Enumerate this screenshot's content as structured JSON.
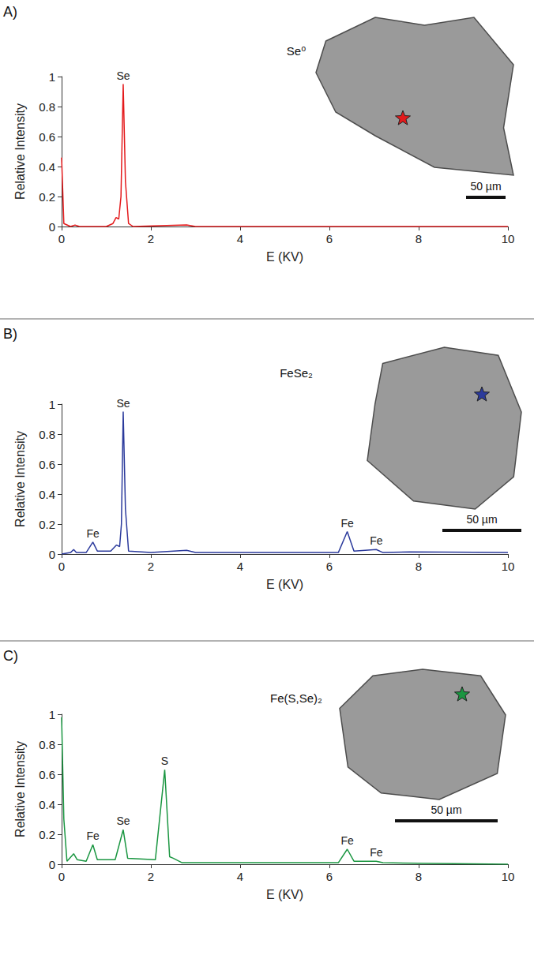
{
  "chart_data": [
    {
      "type": "line",
      "panel": "A)",
      "title": "Se⁰",
      "color": "#e41a1c",
      "x_label": "E (KV)",
      "y_label": "Relative Intensity",
      "xlim": [
        0,
        10
      ],
      "xticks": [
        0,
        2,
        4,
        6,
        8,
        10
      ],
      "ylim": [
        0,
        1
      ],
      "yticks": [
        0,
        0.2,
        0.4,
        0.6,
        0.8,
        1
      ],
      "grid": false,
      "x": [
        0,
        0.05,
        0.2,
        0.3,
        0.4,
        1.0,
        1.15,
        1.22,
        1.28,
        1.33,
        1.38,
        1.43,
        1.5,
        1.6,
        2.8,
        3.0,
        10
      ],
      "values": [
        0.46,
        0.02,
        0.0,
        0.01,
        0.0,
        0.0,
        0.02,
        0.06,
        0.05,
        0.2,
        0.95,
        0.3,
        0.02,
        0.0,
        0.01,
        0.0,
        0.0
      ],
      "annotations": [
        {
          "text": "Se",
          "x": 1.38,
          "y": 0.95
        }
      ],
      "scale_bar": "50 µm"
    },
    {
      "type": "line",
      "panel": "B)",
      "title": "FeSe₂",
      "color": "#2b3a9c",
      "x_label": "E (KV)",
      "y_label": "Relative Intensity",
      "xlim": [
        0,
        10
      ],
      "xticks": [
        0,
        2,
        4,
        6,
        8,
        10
      ],
      "ylim": [
        0,
        1
      ],
      "yticks": [
        0,
        0.2,
        0.4,
        0.6,
        0.8,
        1
      ],
      "grid": false,
      "x": [
        0,
        0.2,
        0.27,
        0.33,
        0.55,
        0.7,
        0.8,
        1.1,
        1.23,
        1.3,
        1.34,
        1.38,
        1.43,
        1.5,
        2.0,
        2.8,
        3.0,
        6.2,
        6.4,
        6.55,
        7.05,
        7.2,
        7.8,
        10
      ],
      "values": [
        0.0,
        0.01,
        0.03,
        0.01,
        0.01,
        0.08,
        0.02,
        0.02,
        0.06,
        0.05,
        0.2,
        0.95,
        0.3,
        0.02,
        0.01,
        0.025,
        0.01,
        0.01,
        0.15,
        0.02,
        0.03,
        0.01,
        0.015,
        0.01
      ],
      "annotations": [
        {
          "text": "Fe",
          "x": 0.7,
          "y": 0.08
        },
        {
          "text": "Se",
          "x": 1.38,
          "y": 0.95
        },
        {
          "text": "Fe",
          "x": 6.4,
          "y": 0.15
        },
        {
          "text": "Fe",
          "x": 7.05,
          "y": 0.03
        }
      ],
      "scale_bar": "50 µm"
    },
    {
      "type": "line",
      "panel": "C)",
      "title": "Fe(S,Se)₂",
      "color": "#1a9641",
      "x_label": "E (KV)",
      "y_label": "Relative Intensity",
      "xlim": [
        0,
        10
      ],
      "xticks": [
        0,
        2,
        4,
        6,
        8,
        10
      ],
      "ylim": [
        0,
        1
      ],
      "yticks": [
        0,
        0.2,
        0.4,
        0.6,
        0.8,
        1
      ],
      "grid": false,
      "x": [
        0,
        0.05,
        0.12,
        0.27,
        0.35,
        0.55,
        0.7,
        0.8,
        1.2,
        1.38,
        1.48,
        2.1,
        2.31,
        2.42,
        2.5,
        2.7,
        6.2,
        6.4,
        6.55,
        7.05,
        7.2,
        10
      ],
      "values": [
        0.98,
        0.3,
        0.02,
        0.07,
        0.03,
        0.02,
        0.13,
        0.03,
        0.03,
        0.23,
        0.04,
        0.03,
        0.63,
        0.05,
        0.04,
        0.01,
        0.01,
        0.1,
        0.02,
        0.02,
        0.01,
        0.0
      ],
      "annotations": [
        {
          "text": "Fe",
          "x": 0.7,
          "y": 0.13
        },
        {
          "text": "Se",
          "x": 1.38,
          "y": 0.23
        },
        {
          "text": "S",
          "x": 2.31,
          "y": 0.63
        },
        {
          "text": "Fe",
          "x": 6.4,
          "y": 0.1
        },
        {
          "text": "Fe",
          "x": 7.05,
          "y": 0.02
        }
      ],
      "scale_bar": "50 µm"
    }
  ]
}
